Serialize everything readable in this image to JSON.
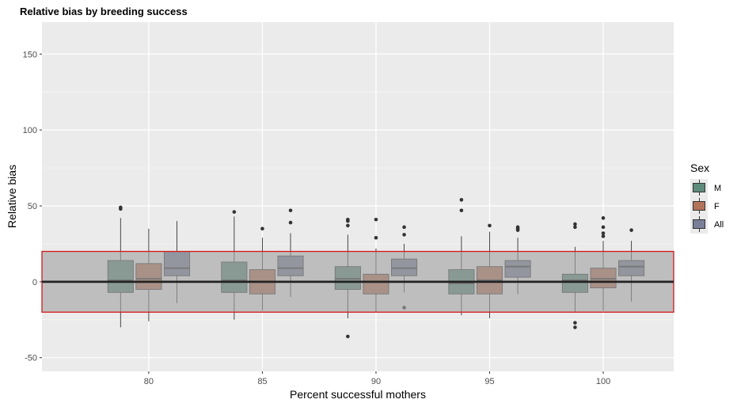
{
  "chart_data": {
    "type": "boxplot",
    "title": "Relative bias by breeding success",
    "xlabel": "Percent successful mothers",
    "ylabel": "Relative bias",
    "xlim": [
      75.3,
      103.1
    ],
    "ylim": [
      -59,
      171
    ],
    "x_ticks": [
      80,
      85,
      90,
      95,
      100
    ],
    "y_ticks": [
      -50,
      0,
      50,
      100,
      150
    ],
    "grid": true,
    "legend_position": "right",
    "legend_title": "Sex",
    "reference_line": 0,
    "band": [
      -20,
      20
    ],
    "colors": {
      "M": "#5f8b7c",
      "F": "#b2735b",
      "All": "#7a7f98",
      "band_fill": "#a3a3a3",
      "band_border": "#d11a1a"
    },
    "series": [
      {
        "name": "M",
        "boxes": [
          {
            "x": 80,
            "min": -30,
            "q1": -7,
            "median": 1,
            "q3": 14,
            "max": 42,
            "outliers": [
              48,
              49
            ]
          },
          {
            "x": 85,
            "min": -25,
            "q1": -7,
            "median": 1,
            "q3": 13,
            "max": 43,
            "outliers": [
              46
            ]
          },
          {
            "x": 90,
            "min": -24,
            "q1": -5,
            "median": 2,
            "q3": 10,
            "max": 31,
            "outliers": [
              37,
              40,
              41,
              -36
            ]
          },
          {
            "x": 95,
            "min": -22,
            "q1": -8,
            "median": -1,
            "q3": 8,
            "max": 30,
            "outliers": [
              47,
              54
            ]
          },
          {
            "x": 100,
            "min": -20,
            "q1": -7,
            "median": 1,
            "q3": 5,
            "max": 23,
            "outliers": [
              36,
              38,
              -27,
              -30
            ]
          }
        ]
      },
      {
        "name": "F",
        "boxes": [
          {
            "x": 80,
            "min": -26,
            "q1": -5,
            "median": 2,
            "q3": 12,
            "max": 35,
            "outliers": []
          },
          {
            "x": 85,
            "min": -19,
            "q1": -8,
            "median": 0,
            "q3": 8,
            "max": 29,
            "outliers": [
              35
            ]
          },
          {
            "x": 90,
            "min": -20,
            "q1": -8,
            "median": 0,
            "q3": 5,
            "max": 22,
            "outliers": [
              29,
              41
            ]
          },
          {
            "x": 95,
            "min": -24,
            "q1": -8,
            "median": 1,
            "q3": 10,
            "max": 33,
            "outliers": [
              37
            ]
          },
          {
            "x": 100,
            "min": -19,
            "q1": -4,
            "median": 2,
            "q3": 9,
            "max": 27,
            "outliers": [
              30,
              32,
              36,
              42
            ]
          }
        ]
      },
      {
        "name": "All",
        "boxes": [
          {
            "x": 80,
            "min": -14,
            "q1": 4,
            "median": 9,
            "q3": 20,
            "max": 40,
            "outliers": []
          },
          {
            "x": 85,
            "min": -10,
            "q1": 4,
            "median": 9,
            "q3": 17,
            "max": 32,
            "outliers": [
              39,
              47
            ]
          },
          {
            "x": 90,
            "min": -7,
            "q1": 4,
            "median": 9,
            "q3": 15,
            "max": 25,
            "outliers": [
              31,
              36,
              -17
            ]
          },
          {
            "x": 95,
            "min": -8,
            "q1": 3,
            "median": 10,
            "q3": 14,
            "max": 29,
            "outliers": [
              34,
              35,
              36
            ]
          },
          {
            "x": 100,
            "min": -13,
            "q1": 4,
            "median": 10,
            "q3": 14,
            "max": 27,
            "outliers": [
              34
            ]
          }
        ]
      }
    ]
  }
}
